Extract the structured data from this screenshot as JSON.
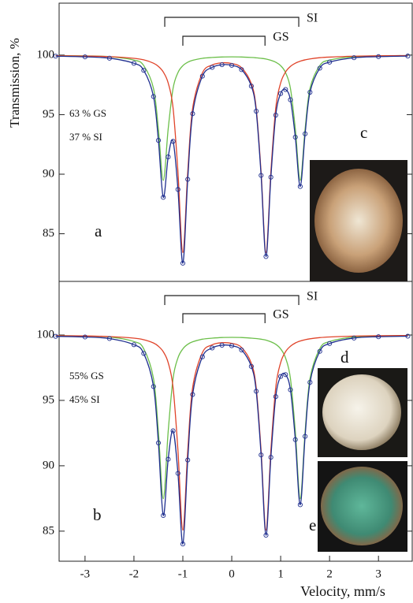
{
  "chart_data": [
    {
      "type": "line",
      "y_label": "Transmission, %",
      "xlim": [
        -3.53,
        3.69
      ],
      "ylim": [
        81.0,
        104.36
      ],
      "yticks": [
        85,
        90,
        95,
        100
      ],
      "texts": [
        "63 % GS",
        "37 % SI"
      ],
      "panel_letters": [
        "a",
        "c"
      ],
      "doublets": [
        {
          "label": "SI",
          "positions": [
            -1.37,
            1.37
          ]
        },
        {
          "label": "GS",
          "positions": [
            -1.0,
            0.68
          ]
        }
      ],
      "x": [
        -3.6,
        -3,
        -2.5,
        -2,
        -1.8,
        -1.6,
        -1.5,
        -1.4,
        -1.3,
        -1.2,
        -1.1,
        -1.0,
        -0.9,
        -0.8,
        -0.6,
        -0.4,
        -0.2,
        0,
        0.2,
        0.4,
        0.5,
        0.6,
        0.7,
        0.8,
        0.9,
        1.0,
        1.1,
        1.2,
        1.3,
        1.4,
        1.5,
        1.6,
        1.8,
        2.0,
        2.5,
        3.0,
        3.6
      ],
      "series": [
        {
          "color": "#1f2f8f",
          "marker": "circle",
          "values": [
            99.91,
            99.85,
            99.74,
            99.31,
            98.72,
            96.52,
            92.84,
            88.06,
            91.45,
            92.76,
            88.72,
            82.53,
            89.57,
            95.08,
            98.23,
            98.97,
            99.19,
            99.14,
            98.78,
            97.4,
            95.29,
            89.9,
            83.09,
            89.75,
            94.96,
            96.77,
            97.11,
            96.25,
            93.11,
            88.97,
            93.39,
            96.88,
            98.9,
            99.41,
            99.78,
            99.87,
            99.92
          ]
        },
        {
          "color": "#e0442a",
          "values": [
            99.95,
            99.92,
            99.87,
            99.73,
            99.6,
            99.32,
            99.05,
            98.58,
            97.66,
            95.56,
            90.19,
            83.42,
            90.17,
            95.52,
            98.5,
            99.17,
            99.35,
            99.29,
            98.94,
            97.6,
            95.52,
            90.17,
            83.42,
            90.19,
            95.56,
            97.66,
            98.58,
            99.05,
            99.32,
            99.49,
            99.6,
            99.68,
            99.78,
            99.83,
            99.91,
            99.94,
            99.96
          ]
        },
        {
          "color": "#6cbf4a",
          "values": [
            99.96,
            99.93,
            99.87,
            99.58,
            99.12,
            97.2,
            93.79,
            89.48,
            93.79,
            97.2,
            98.53,
            99.11,
            99.4,
            99.56,
            99.73,
            99.8,
            99.84,
            99.85,
            99.84,
            99.8,
            99.77,
            99.73,
            99.67,
            99.56,
            99.4,
            99.11,
            98.53,
            97.2,
            93.79,
            89.48,
            93.79,
            97.2,
            99.12,
            99.58,
            99.87,
            99.93,
            99.96
          ]
        }
      ]
    },
    {
      "type": "line",
      "x_label": "Velocity, mm/s",
      "xlim": [
        -3.53,
        3.69
      ],
      "ylim": [
        82.7,
        104.1
      ],
      "yticks": [
        85,
        90,
        95,
        100
      ],
      "xticks": [
        -3,
        -2,
        -1,
        0,
        1,
        2,
        3
      ],
      "texts": [
        "55% GS",
        "45% SI"
      ],
      "panel_letters": [
        "b",
        "d",
        "e"
      ],
      "doublets": [
        {
          "label": "SI",
          "positions": [
            -1.37,
            1.37
          ]
        },
        {
          "label": "GS",
          "positions": [
            -1.0,
            0.68
          ]
        }
      ],
      "x": [
        -3.6,
        -3,
        -2.5,
        -2,
        -1.8,
        -1.6,
        -1.5,
        -1.4,
        -1.3,
        -1.2,
        -1.1,
        -1.0,
        -0.9,
        -0.8,
        -0.6,
        -0.4,
        -0.2,
        0,
        0.2,
        0.4,
        0.5,
        0.6,
        0.7,
        0.8,
        0.9,
        1.0,
        1.1,
        1.2,
        1.3,
        1.4,
        1.5,
        1.6,
        1.8,
        2.0,
        2.5,
        3.0,
        3.6
      ],
      "series": [
        {
          "color": "#1f2f8f",
          "marker": "circle",
          "values": [
            99.9,
            99.85,
            99.73,
            99.26,
            98.59,
            96.06,
            91.75,
            86.2,
            90.5,
            92.67,
            89.42,
            84.02,
            90.44,
            95.45,
            98.33,
            99.01,
            99.22,
            99.18,
            98.86,
            97.6,
            95.7,
            90.83,
            84.69,
            90.65,
            95.29,
            96.83,
            96.97,
            95.81,
            92.0,
            87.02,
            92.25,
            96.38,
            98.75,
            99.35,
            99.77,
            99.87,
            99.91
          ]
        },
        {
          "color": "#e0442a",
          "values": [
            99.95,
            99.93,
            99.88,
            99.76,
            99.64,
            99.39,
            99.14,
            98.72,
            97.89,
            96.0,
            91.17,
            85.08,
            91.15,
            95.97,
            98.65,
            99.25,
            99.41,
            99.36,
            99.05,
            97.84,
            95.97,
            91.15,
            85.08,
            91.17,
            96.0,
            97.89,
            98.72,
            99.14,
            99.39,
            99.54,
            99.64,
            99.71,
            99.8,
            99.85,
            99.92,
            99.95,
            99.96
          ]
        },
        {
          "color": "#6cbf4a",
          "values": [
            99.95,
            99.92,
            99.85,
            99.5,
            98.95,
            96.67,
            92.61,
            87.48,
            92.61,
            96.67,
            98.25,
            98.94,
            99.29,
            99.48,
            99.68,
            99.76,
            99.81,
            99.82,
            99.81,
            99.76,
            99.73,
            99.68,
            99.61,
            99.48,
            99.29,
            98.94,
            98.25,
            96.67,
            92.61,
            87.48,
            92.61,
            96.67,
            98.95,
            99.5,
            99.85,
            99.92,
            99.95
          ]
        }
      ]
    }
  ]
}
